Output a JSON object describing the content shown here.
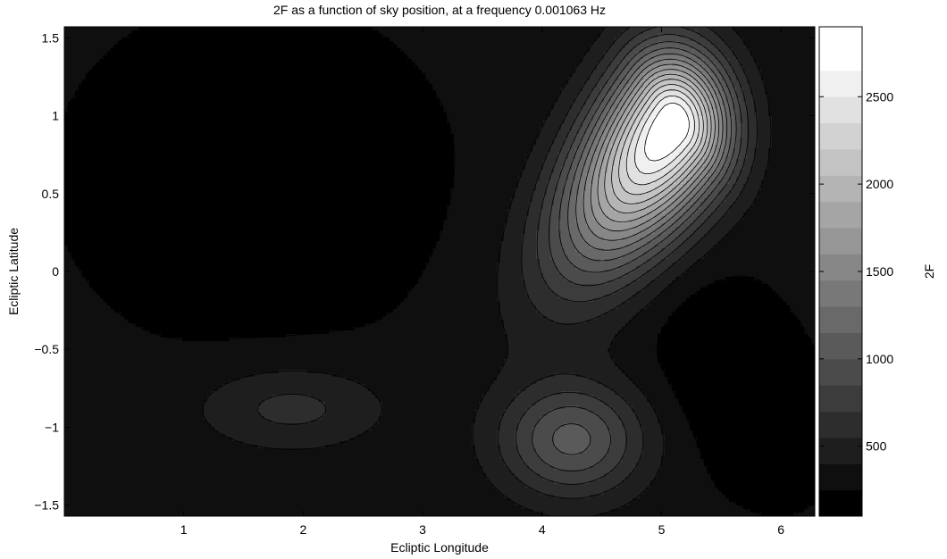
{
  "chart_data": {
    "type": "heatmap",
    "subtype": "filled-contour",
    "title": "2F as a function of sky position, at a frequency 0.001063 Hz",
    "xlabel": "Ecliptic Longitude",
    "ylabel": "Ecliptic Latitude",
    "xlim": [
      0,
      6.283
    ],
    "ylim": [
      -1.5708,
      1.5708
    ],
    "xticks": [
      1,
      2,
      3,
      4,
      5,
      6
    ],
    "xtick_labels": [
      "1",
      "2",
      "3",
      "4",
      "5",
      "6"
    ],
    "yticks": [
      -1.5,
      -1,
      -0.5,
      0,
      0.5,
      1,
      1.5
    ],
    "ytick_labels": [
      "−1.5",
      "−1",
      "−0.5",
      "0",
      "0.5",
      "1",
      "1.5"
    ],
    "colormap": "gray",
    "colorbar": {
      "label": "2F",
      "range": [
        100,
        2900
      ],
      "ticks": [
        500,
        1000,
        1500,
        2000,
        2500
      ],
      "tick_labels": [
        "500",
        "1000",
        "1500",
        "2000",
        "2500"
      ],
      "levels": [
        100,
        250,
        400,
        550,
        700,
        850,
        1000,
        1150,
        1300,
        1450,
        1600,
        1750,
        1900,
        2050,
        2200,
        2350,
        2500,
        2650,
        2850
      ]
    },
    "background_value": 280,
    "features": [
      {
        "name": "primary maximum",
        "lon": 5.1,
        "lat": 0.95,
        "peak": 2850
      },
      {
        "name": "secondary maximum",
        "lon": 4.25,
        "lat": -1.08,
        "peak": 1050
      },
      {
        "name": "tertiary maximum",
        "lon": 1.9,
        "lat": -0.88,
        "peak": 600
      },
      {
        "name": "minimum region",
        "lon": 1.6,
        "lat": 0.6,
        "peak": 100
      },
      {
        "name": "minimum band",
        "lon": 5.6,
        "lat": -0.7,
        "peak": 100
      }
    ]
  }
}
